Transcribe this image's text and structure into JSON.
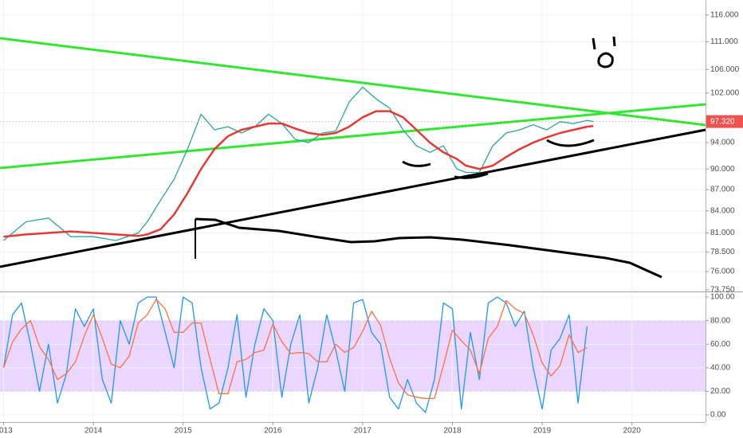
{
  "chart_data": [
    {
      "type": "line",
      "log_scale": true,
      "xlim": [
        2012.96,
        2020.82
      ],
      "ylim": [
        73.65,
        118.9
      ],
      "yticks": [
        {
          "value": 73.75,
          "label": "73.750"
        },
        {
          "value": 76,
          "label": "76.000"
        },
        {
          "value": 78.5,
          "label": "78.500"
        },
        {
          "value": 81,
          "label": "81.000"
        },
        {
          "value": 84,
          "label": "84.000"
        },
        {
          "value": 87,
          "label": "87.000"
        },
        {
          "value": 90,
          "label": "90.000"
        },
        {
          "value": 94,
          "label": "94.000"
        },
        {
          "value": 102,
          "label": "102.000"
        },
        {
          "value": 106,
          "label": "106.000"
        },
        {
          "value": 111,
          "label": "111.000"
        },
        {
          "value": 116,
          "label": "116.000"
        }
      ],
      "x": [
        2013.0,
        2013.25,
        2013.5,
        2013.75,
        2014.0,
        2014.25,
        2014.5,
        2014.6,
        2014.75,
        2014.9,
        2015.05,
        2015.2,
        2015.35,
        2015.5,
        2015.65,
        2015.8,
        2015.95,
        2016.1,
        2016.25,
        2016.4,
        2016.55,
        2016.7,
        2016.85,
        2017.0,
        2017.15,
        2017.3,
        2017.45,
        2017.6,
        2017.75,
        2017.9,
        2018.05,
        2018.15,
        2018.3,
        2018.45,
        2018.6,
        2018.75,
        2018.9,
        2019.05,
        2019.2,
        2019.35,
        2019.5,
        2019.57
      ],
      "series": [
        {
          "color": "#26a69a",
          "values": [
            80.0,
            82.5,
            83.0,
            80.5,
            80.5,
            80.0,
            81.0,
            82.5,
            85.5,
            88.5,
            93.0,
            98.5,
            96.0,
            96.5,
            95.5,
            96.5,
            98.5,
            97.0,
            94.5,
            94.0,
            95.5,
            95.8,
            100.5,
            103.0,
            101.0,
            99.5,
            96.0,
            93.5,
            92.5,
            93.5,
            90.0,
            89.5,
            89.5,
            93.5,
            95.5,
            96.0,
            96.8,
            96.0,
            97.3,
            97.0,
            97.5,
            97.32
          ]
        },
        {
          "color": "#e53935",
          "values": [
            80.5,
            80.8,
            81.0,
            81.2,
            81.0,
            80.8,
            80.6,
            80.8,
            81.5,
            83.5,
            86.5,
            90.0,
            93.0,
            95.0,
            96.0,
            96.5,
            97.0,
            97.0,
            96.2,
            95.5,
            95.2,
            95.5,
            96.5,
            98.0,
            99.0,
            99.0,
            98.0,
            96.0,
            94.0,
            92.5,
            91.5,
            90.5,
            90.0,
            90.5,
            91.8,
            93.0,
            94.0,
            94.8,
            95.5,
            96.0,
            96.5,
            96.6
          ]
        }
      ],
      "last_value": {
        "value": 97.32,
        "label": "97.320",
        "color": "#ef5350"
      }
    },
    {
      "type": "line",
      "xlim": [
        2012.96,
        2020.82
      ],
      "ylim": [
        -6.1,
        103.4
      ],
      "xticks": [
        2013,
        2014,
        2015,
        2016,
        2017,
        2018,
        2019,
        2020
      ],
      "yticks": [
        {
          "value": 0,
          "label": "0.00"
        },
        {
          "value": 20,
          "label": "20.00"
        },
        {
          "value": 40,
          "label": "40.00"
        },
        {
          "value": 60,
          "label": "60.00"
        },
        {
          "value": 80,
          "label": "80.00"
        },
        {
          "value": 100,
          "label": "100.00"
        }
      ],
      "band": [
        20,
        80
      ],
      "band_color": "#d8b4fe",
      "x": [
        2013.0,
        2013.1,
        2013.2,
        2013.3,
        2013.4,
        2013.5,
        2013.6,
        2013.7,
        2013.8,
        2013.9,
        2014.0,
        2014.1,
        2014.2,
        2014.3,
        2014.4,
        2014.5,
        2014.6,
        2014.7,
        2014.8,
        2014.9,
        2015.0,
        2015.1,
        2015.2,
        2015.3,
        2015.4,
        2015.5,
        2015.6,
        2015.7,
        2015.8,
        2015.9,
        2016.0,
        2016.1,
        2016.2,
        2016.3,
        2016.4,
        2016.5,
        2016.6,
        2016.7,
        2016.8,
        2016.9,
        2017.0,
        2017.1,
        2017.2,
        2017.3,
        2017.4,
        2017.5,
        2017.6,
        2017.7,
        2017.8,
        2017.9,
        2018.0,
        2018.1,
        2018.2,
        2018.3,
        2018.4,
        2018.5,
        2018.6,
        2018.7,
        2018.8,
        2018.9,
        2019.0,
        2019.1,
        2019.2,
        2019.3,
        2019.4,
        2019.5
      ],
      "series": [
        {
          "color": "#2196f3",
          "values": [
            40,
            85,
            95,
            60,
            20,
            60,
            10,
            35,
            90,
            75,
            90,
            30,
            10,
            80,
            60,
            95,
            100,
            100,
            70,
            40,
            100,
            95,
            40,
            5,
            10,
            40,
            85,
            15,
            60,
            90,
            80,
            15,
            60,
            85,
            10,
            40,
            85,
            55,
            20,
            95,
            98,
            70,
            60,
            15,
            5,
            30,
            10,
            2,
            30,
            95,
            90,
            5,
            70,
            30,
            95,
            100,
            95,
            75,
            88,
            40,
            5,
            55,
            65,
            85,
            10,
            75
          ]
        },
        {
          "color": "#ff7043",
          "values": [
            40,
            62,
            73,
            80,
            58,
            47,
            30,
            35,
            45,
            67,
            85,
            65,
            43,
            40,
            50,
            78,
            85,
            98,
            90,
            70,
            70,
            78,
            78,
            47,
            18,
            18,
            45,
            47,
            53,
            55,
            77,
            62,
            52,
            53,
            52,
            45,
            45,
            60,
            53,
            57,
            71,
            88,
            76,
            48,
            27,
            17,
            15,
            14,
            14,
            42,
            72,
            63,
            55,
            35,
            65,
            75,
            97,
            90,
            86,
            68,
            44,
            33,
            42,
            68,
            53,
            57
          ]
        }
      ]
    }
  ]
}
